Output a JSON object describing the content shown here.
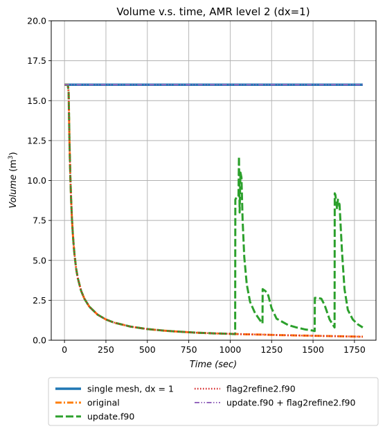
{
  "chart_data": {
    "type": "line",
    "title": "Volume v.s. time, AMR level 2 (dx=1)",
    "xlabel": "Time",
    "xlabel_unit": "(sec)",
    "ylabel": "Volume",
    "ylabel_unit": "(m",
    "ylabel_unit_sup": "3",
    "ylabel_unit_close": ")",
    "xlim": [
      -80,
      1880
    ],
    "ylim": [
      0,
      20
    ],
    "xticks": [
      0,
      250,
      500,
      750,
      1000,
      1250,
      1500,
      1750
    ],
    "yticks": [
      0.0,
      2.5,
      5.0,
      7.5,
      10.0,
      12.5,
      15.0,
      17.5,
      20.0
    ],
    "xtick_labels": [
      "0",
      "250",
      "500",
      "750",
      "1000",
      "1250",
      "1500",
      "1750"
    ],
    "ytick_labels": [
      "0.0",
      "2.5",
      "5.0",
      "7.5",
      "10.0",
      "12.5",
      "15.0",
      "17.5",
      "20.0"
    ],
    "grid": true,
    "legend_position": "bottom-outside",
    "series": [
      {
        "name": "single mesh, dx = 1",
        "color": "#1f77b4",
        "style": "solid",
        "x": [
          0,
          1800
        ],
        "y": [
          16.0,
          16.0
        ]
      },
      {
        "name": "original",
        "color": "#ff7f0e",
        "style": "dashdot",
        "x": [
          0,
          20,
          25,
          30,
          35,
          40,
          45,
          50,
          55,
          60,
          70,
          80,
          100,
          120,
          150,
          200,
          250,
          300,
          400,
          500,
          600,
          700,
          800,
          900,
          1000,
          1100,
          1200,
          1300,
          1400,
          1500,
          1600,
          1700,
          1800
        ],
        "y": [
          16.0,
          16.0,
          15.5,
          12.5,
          10.3,
          8.8,
          7.6,
          6.7,
          6.0,
          5.4,
          4.5,
          3.9,
          3.1,
          2.6,
          2.1,
          1.6,
          1.3,
          1.1,
          0.85,
          0.7,
          0.6,
          0.53,
          0.47,
          0.43,
          0.4,
          0.37,
          0.35,
          0.32,
          0.3,
          0.28,
          0.26,
          0.24,
          0.22
        ]
      },
      {
        "name": "update.f90",
        "color": "#2ca02c",
        "style": "dashed",
        "x": [
          0,
          20,
          25,
          30,
          35,
          40,
          45,
          50,
          55,
          60,
          70,
          80,
          100,
          120,
          150,
          200,
          250,
          300,
          400,
          500,
          600,
          700,
          800,
          900,
          1000,
          1030,
          1031,
          1040,
          1050,
          1053,
          1057,
          1062,
          1068,
          1075,
          1085,
          1100,
          1120,
          1150,
          1180,
          1195,
          1196,
          1210,
          1220,
          1230,
          1250,
          1280,
          1350,
          1400,
          1450,
          1500,
          1510,
          1511,
          1530,
          1550,
          1570,
          1600,
          1630,
          1631,
          1635,
          1645,
          1650,
          1660,
          1675,
          1690,
          1710,
          1740,
          1770,
          1800
        ],
        "y": [
          16.0,
          16.0,
          15.5,
          12.5,
          10.3,
          8.8,
          7.6,
          6.7,
          6.0,
          5.4,
          4.5,
          3.9,
          3.1,
          2.6,
          2.1,
          1.6,
          1.3,
          1.1,
          0.85,
          0.7,
          0.6,
          0.53,
          0.47,
          0.43,
          0.4,
          0.38,
          8.8,
          9.0,
          9.0,
          11.5,
          8.0,
          10.5,
          10.2,
          7.5,
          5.2,
          3.5,
          2.4,
          1.7,
          1.25,
          1.05,
          3.2,
          3.1,
          3.0,
          2.8,
          2.0,
          1.35,
          0.95,
          0.8,
          0.68,
          0.6,
          0.57,
          2.65,
          2.65,
          2.6,
          2.2,
          1.3,
          0.8,
          9.2,
          9.1,
          8.2,
          8.8,
          8.5,
          5.5,
          3.2,
          1.9,
          1.3,
          1.0,
          0.8
        ]
      },
      {
        "name": "flag2refine2.f90",
        "color": "#d62728",
        "style": "dotted",
        "x": [
          0,
          20,
          25,
          30,
          35,
          40,
          45,
          50,
          55,
          60,
          70,
          80,
          100,
          120,
          150,
          200,
          250,
          300,
          400,
          500,
          600,
          700,
          800,
          900,
          1000,
          1100,
          1200,
          1300,
          1400,
          1500,
          1600,
          1700,
          1800
        ],
        "y": [
          16.0,
          16.0,
          15.5,
          12.5,
          10.3,
          8.8,
          7.6,
          6.7,
          6.0,
          5.4,
          4.5,
          3.9,
          3.1,
          2.6,
          2.1,
          1.6,
          1.3,
          1.1,
          0.85,
          0.7,
          0.6,
          0.53,
          0.47,
          0.43,
          0.4,
          0.37,
          0.35,
          0.32,
          0.3,
          0.28,
          0.26,
          0.24,
          0.22
        ]
      },
      {
        "name": "update.f90 + flag2refine2.f90",
        "color": "#9467bd",
        "style": "dashdotdot",
        "x": [
          0,
          1800
        ],
        "y": [
          16.0,
          16.0
        ]
      }
    ]
  }
}
